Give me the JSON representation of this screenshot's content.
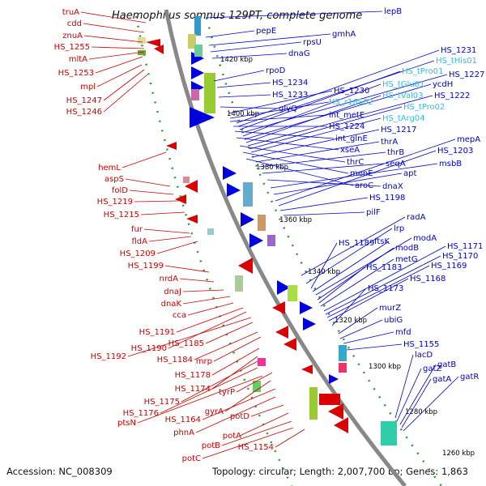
{
  "title": "Haemophilus somnus 129PT, complete genome",
  "footer": {
    "accession": "Accession: NC_008309",
    "topology": "Topology: circular; Length: 2,007,700 bp; Genes: 1,863"
  },
  "colors": {
    "reverse_strand": "#cc0000",
    "forward_strand": "#0000cc",
    "rna": "#33bbdd",
    "backbone": "#888888",
    "dots": "#339933"
  },
  "kbp_ticks": [
    "1420 kbp",
    "1400 kbp",
    "1380 kbp",
    "1360 kbp",
    "1340 kbp",
    "1320 kbp",
    "1300 kbp",
    "1280 kbp",
    "1260 kbp"
  ],
  "left_labels": [
    "truA",
    "cdd",
    "znuA",
    "HS_1255",
    "mltA",
    "HS_1253",
    "mpl",
    "HS_1247",
    "HS_1246",
    "hemL",
    "aspS",
    "folD",
    "HS_1219",
    "HS_1215",
    "fur",
    "fldA",
    "HS_1209",
    "HS_1199",
    "nrdA",
    "dnaJ",
    "dnaK",
    "cca",
    "HS_1191",
    "HS_1190",
    "HS_1192",
    "HS_1185",
    "HS_1184",
    "mrp",
    "HS_1178",
    "HS_1174",
    "HS_1175",
    "HS_1176",
    "ptsN",
    "tyrP",
    "gyrA",
    "HS_1164",
    "phnA",
    "potD",
    "potA",
    "potB",
    "potC",
    "HS_1154"
  ],
  "right_labels": [
    "lepB",
    "pepE",
    "gmhA",
    "rpsU",
    "dnaG",
    "rpoD",
    "HS_1234",
    "HS_1233",
    "glyQ",
    "HS_1230",
    "HS_r16S02",
    "int_metE",
    "HS_1224",
    "int_glnE",
    "xseA",
    "thrC",
    "menE",
    "aroC",
    "HS_1231",
    "HS_tHis01",
    "HS_tPro01",
    "HS_1227",
    "HS_tGlu01",
    "ycdH",
    "HS_tVal03",
    "HS_1222",
    "HS_tPro02",
    "HS_tArg04",
    "HS_1217",
    "thrA",
    "thrB",
    "seqA",
    "dnaX",
    "msbB",
    "apt",
    "mepA",
    "HS_1203",
    "HS_1198",
    "pilF",
    "radA",
    "lrp",
    "HS_1189",
    "ftsK",
    "modA",
    "modB",
    "HS_1183",
    "metG",
    "HS_1171",
    "HS_1170",
    "HS_1169",
    "HS_1168",
    "HS_1173",
    "murZ",
    "ubiG",
    "mfd",
    "HS_1155",
    "lacD",
    "gatZ",
    "gatB",
    "gatA",
    "gatR"
  ]
}
